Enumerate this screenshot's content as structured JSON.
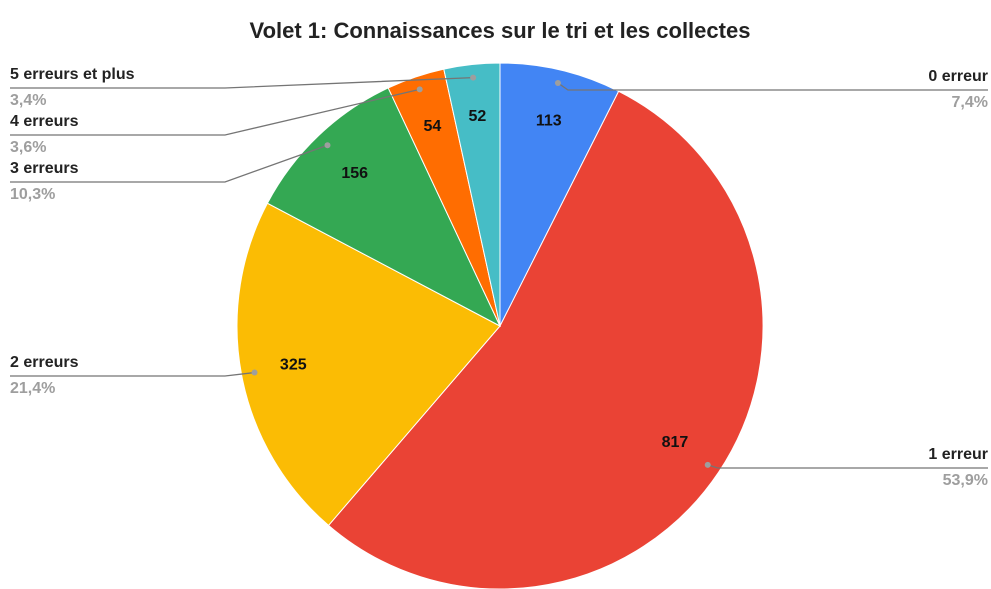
{
  "chart_data": {
    "type": "pie",
    "title": "Volet 1: Connaissances sur le tri et les collectes",
    "categories": [
      "0 erreur",
      "1 erreur",
      "2 erreurs",
      "3 erreurs",
      "4 erreurs",
      "5 erreurs et plus"
    ],
    "values": [
      113,
      817,
      325,
      156,
      54,
      52
    ],
    "percent_labels": [
      "7,4%",
      "53,9%",
      "21,4%",
      "10,3%",
      "3,6%",
      "3,4%"
    ],
    "colors": [
      "#4285f4",
      "#ea4335",
      "#fbbc04",
      "#34a853",
      "#ff6d01",
      "#46bdc6"
    ]
  }
}
